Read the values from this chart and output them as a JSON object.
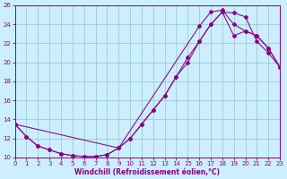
{
  "xlabel": "Windchill (Refroidissement éolien,°C)",
  "xlim": [
    0,
    23
  ],
  "ylim": [
    10,
    26
  ],
  "xticks": [
    0,
    1,
    2,
    3,
    4,
    5,
    6,
    7,
    8,
    9,
    10,
    11,
    12,
    13,
    14,
    15,
    16,
    17,
    18,
    19,
    20,
    21,
    22,
    23
  ],
  "yticks": [
    10,
    12,
    14,
    16,
    18,
    20,
    22,
    24,
    26
  ],
  "bg_color": "#cceeff",
  "line_color": "#880088",
  "grid_color": "#99cccc",
  "line1_x": [
    0,
    1,
    2,
    3,
    4,
    5,
    6,
    7,
    8,
    9,
    10,
    11,
    12,
    13,
    14,
    15,
    16,
    17,
    18,
    19,
    20,
    21,
    22,
    23
  ],
  "line1_y": [
    13.5,
    12.2,
    11.2,
    10.8,
    10.4,
    10.2,
    10.1,
    10.1,
    10.3,
    11.0,
    12.0,
    13.5,
    15.0,
    16.5,
    18.5,
    20.5,
    22.2,
    24.0,
    25.3,
    25.2,
    24.8,
    22.2,
    21.0,
    19.5
  ],
  "line2_x": [
    0,
    1,
    2,
    3,
    4,
    5,
    6,
    7,
    8,
    9,
    16,
    17,
    18,
    19,
    20,
    21,
    22,
    23
  ],
  "line2_y": [
    13.5,
    12.2,
    11.2,
    10.8,
    10.4,
    10.2,
    10.1,
    10.1,
    10.3,
    11.0,
    23.8,
    25.3,
    25.5,
    24.0,
    23.3,
    22.8,
    21.5,
    19.5
  ],
  "line3_x": [
    0,
    9,
    10,
    11,
    12,
    13,
    14,
    15,
    16,
    17,
    18,
    19,
    20,
    21,
    22,
    23
  ],
  "line3_y": [
    13.5,
    11.0,
    12.0,
    13.5,
    15.0,
    16.5,
    18.5,
    20.0,
    22.2,
    24.0,
    25.3,
    22.8,
    23.3,
    22.8,
    21.5,
    19.5
  ]
}
